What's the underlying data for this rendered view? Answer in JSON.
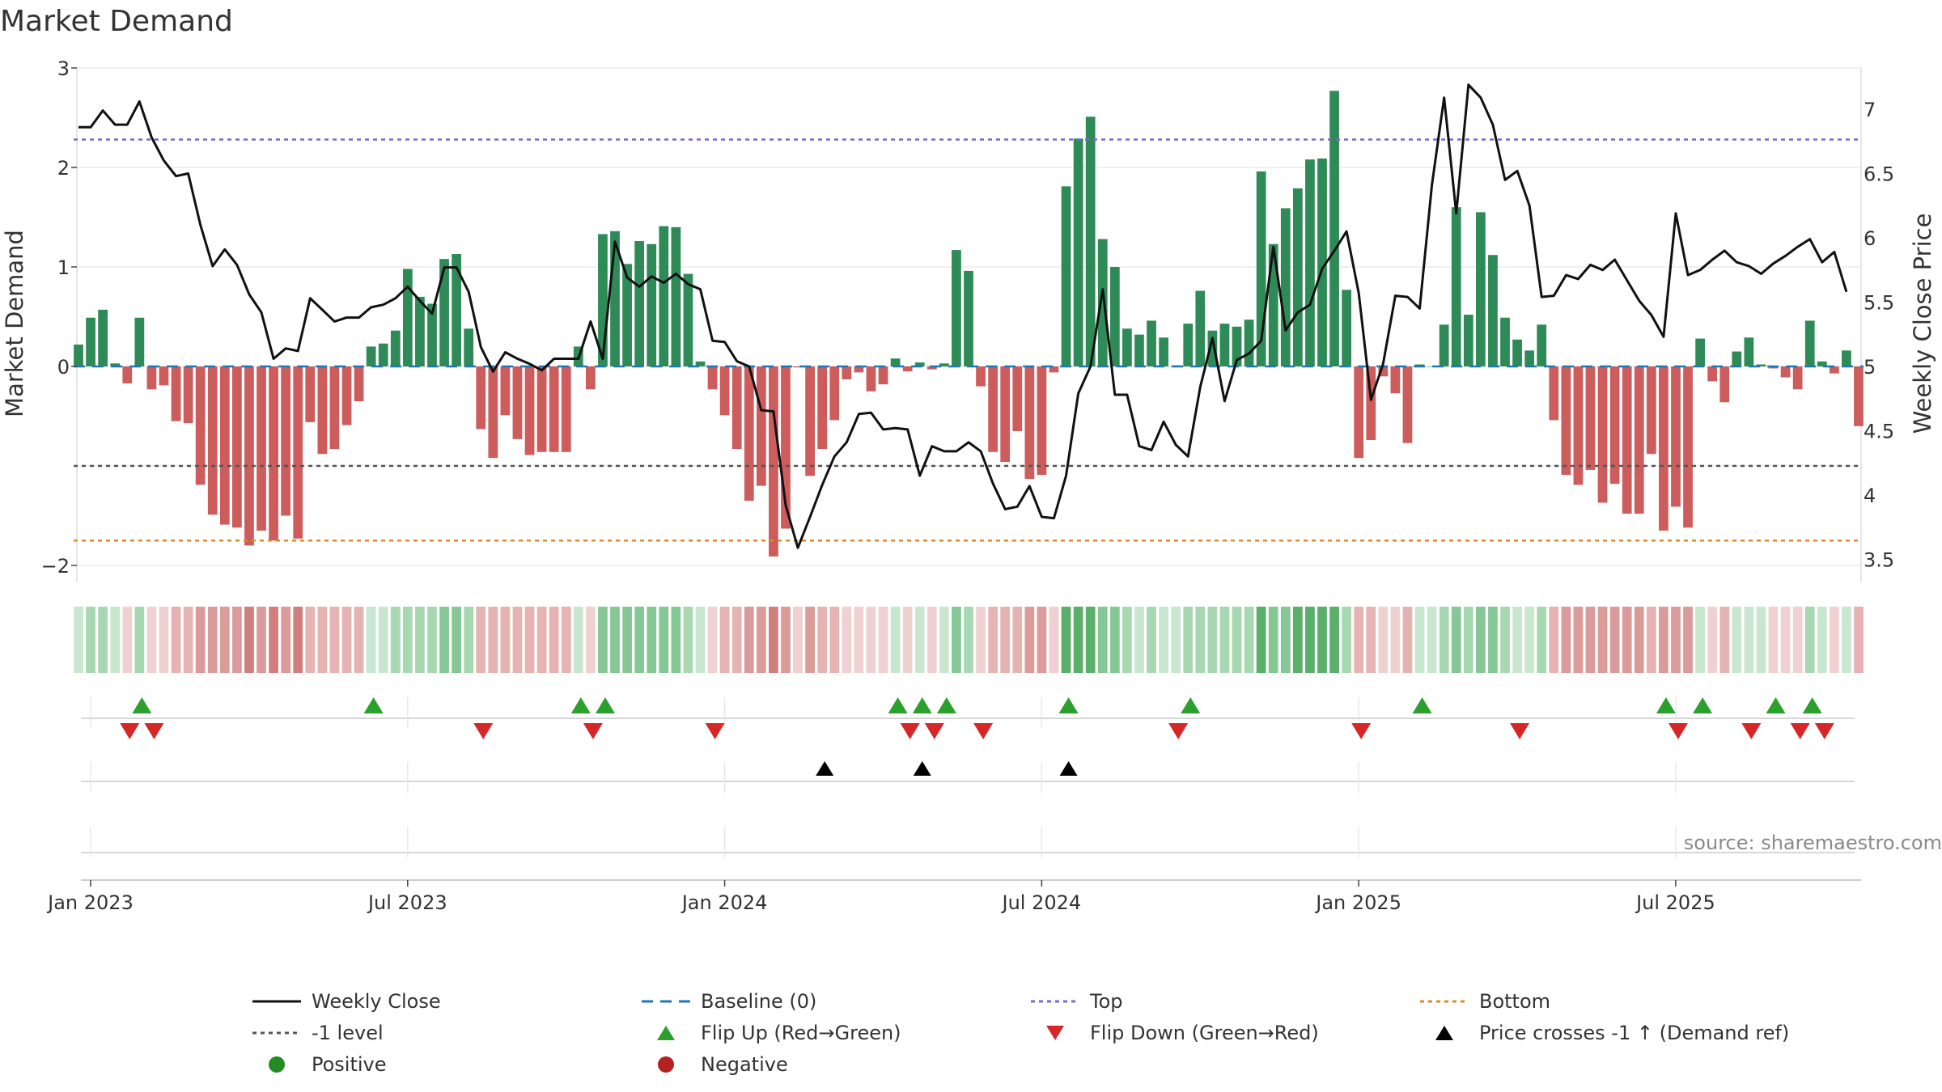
{
  "chart_data": {
    "type": "bar",
    "title": "Market Demand",
    "ylabel": "Market Demand",
    "y2label": "Weekly Close Price",
    "ylim": [
      -2.1,
      3
    ],
    "y2lim": [
      3.42,
      7.45
    ],
    "yticks": [
      "3",
      "2",
      "1",
      "0",
      "−2"
    ],
    "y2ticks": [
      "7",
      "6.5",
      "6",
      "5.5",
      "5",
      "4.5",
      "4",
      "3.5"
    ],
    "xticks": [
      "Jan 2023",
      "Jul 2023",
      "Jan 2024",
      "Jul 2024",
      "Jan 2025",
      "Jul 2025"
    ],
    "reference_levels": {
      "top": 2.28,
      "minus_one": -1.0,
      "bottom": -1.75,
      "baseline": 0
    },
    "demand": [
      0.22,
      0.49,
      0.57,
      0.03,
      -0.17,
      0.49,
      -0.23,
      -0.19,
      -0.55,
      -0.57,
      -1.19,
      -1.49,
      -1.59,
      -1.62,
      -1.8,
      -1.65,
      -1.75,
      -1.5,
      -1.73,
      -0.56,
      -0.88,
      -0.83,
      -0.59,
      -0.35,
      0.2,
      0.23,
      0.36,
      0.98,
      0.7,
      0.63,
      1.08,
      1.13,
      0.38,
      -0.63,
      -0.92,
      -0.49,
      -0.73,
      -0.89,
      -0.86,
      -0.86,
      -0.86,
      0.2,
      -0.23,
      1.33,
      1.36,
      1.03,
      1.26,
      1.23,
      1.41,
      1.4,
      0.93,
      0.05,
      -0.23,
      -0.49,
      -0.83,
      -1.35,
      -1.2,
      -1.91,
      -1.63,
      -0.01,
      -1.1,
      -0.83,
      -0.54,
      -0.13,
      -0.06,
      -0.25,
      -0.18,
      0.08,
      -0.05,
      0.04,
      -0.03,
      0.03,
      1.17,
      0.96,
      -0.2,
      -0.86,
      -0.96,
      -0.65,
      -1.13,
      -1.09,
      -0.06,
      1.81,
      2.29,
      2.51,
      1.28,
      1.0,
      0.38,
      0.32,
      0.46,
      0.29,
      0.01,
      0.43,
      0.76,
      0.36,
      0.43,
      0.4,
      0.47,
      1.96,
      1.23,
      1.59,
      1.79,
      2.08,
      2.09,
      2.77,
      0.77,
      -0.92,
      -0.74,
      -0.1,
      -0.27,
      -0.77,
      0.02,
      0.0,
      0.42,
      1.6,
      0.52,
      1.55,
      1.12,
      0.49,
      0.27,
      0.16,
      0.42,
      -0.54,
      -1.09,
      -1.19,
      -1.04,
      -1.37,
      -1.18,
      -1.48,
      -1.48,
      -0.88,
      -1.65,
      -1.41,
      -1.62,
      0.28,
      -0.15,
      -0.36,
      0.15,
      0.29,
      0.02,
      -0.02,
      -0.11,
      -0.23,
      0.46,
      0.05,
      -0.07,
      0.16,
      -0.6
    ],
    "weekly_close": [
      6.86,
      6.86,
      6.99,
      6.88,
      6.88,
      7.06,
      6.78,
      6.6,
      6.48,
      6.5,
      6.1,
      5.78,
      5.91,
      5.79,
      5.56,
      5.42,
      5.06,
      5.14,
      5.12,
      5.53,
      5.44,
      5.35,
      5.38,
      5.38,
      5.46,
      5.48,
      5.53,
      5.62,
      5.51,
      5.41,
      5.77,
      5.77,
      5.58,
      5.15,
      4.96,
      5.11,
      5.06,
      5.02,
      4.97,
      5.06,
      5.06,
      5.06,
      5.35,
      5.06,
      5.97,
      5.69,
      5.62,
      5.7,
      5.65,
      5.72,
      5.64,
      5.6,
      5.2,
      5.19,
      5.04,
      5.0,
      4.66,
      4.65,
      3.92,
      3.59,
      3.83,
      4.08,
      4.3,
      4.41,
      4.63,
      4.64,
      4.51,
      4.52,
      4.51,
      4.15,
      4.38,
      4.34,
      4.34,
      4.41,
      4.34,
      4.09,
      3.89,
      3.91,
      4.07,
      3.83,
      3.82,
      4.15,
      4.79,
      5.0,
      5.6,
      4.78,
      4.78,
      4.38,
      4.35,
      4.57,
      4.39,
      4.3,
      4.84,
      5.22,
      4.73,
      5.05,
      5.1,
      5.2,
      5.93,
      5.28,
      5.42,
      5.48,
      5.76,
      5.9,
      6.05,
      5.57,
      4.74,
      5.02,
      5.55,
      5.54,
      5.45,
      6.41,
      7.09,
      6.19,
      7.19,
      7.09,
      6.88,
      6.45,
      6.52,
      6.25,
      5.54,
      5.55,
      5.71,
      5.68,
      5.79,
      5.75,
      5.83,
      5.67,
      5.51,
      5.4,
      5.23,
      6.19,
      5.71,
      5.75,
      5.83,
      5.9,
      5.81,
      5.78,
      5.72,
      5.8,
      5.86,
      5.93,
      5.99,
      5.81,
      5.89,
      5.58
    ],
    "flip_up_idx": [
      5,
      24,
      41,
      43,
      67,
      69,
      71,
      81,
      91,
      110,
      130,
      133,
      139,
      142
    ],
    "flip_down_idx": [
      4,
      6,
      33,
      42,
      52,
      68,
      70,
      74,
      90,
      105,
      118,
      131,
      137,
      141,
      143
    ],
    "price_cross_idx": [
      61,
      69,
      81
    ],
    "legend": [
      "Weekly Close",
      "Baseline (0)",
      "Top",
      "Bottom",
      "-1 level",
      "Flip Up (Red→Green)",
      "Flip Down (Green→Red)",
      "Price crosses -1 ↑ (Demand ref)",
      "Positive",
      "Negative"
    ],
    "colors": {
      "positive": "#2e8b57",
      "negative": "#cd5c5c",
      "price": "#111111",
      "top": "#7b68c8",
      "minus_one": "#555555",
      "bottom": "#e08a2c",
      "baseline": "#1f77b4",
      "flip_up": "#2ca02c",
      "flip_down": "#d62728",
      "legend_positive": "#228b22",
      "legend_negative": "#b22222"
    }
  },
  "source": "source: sharemaestro.com"
}
